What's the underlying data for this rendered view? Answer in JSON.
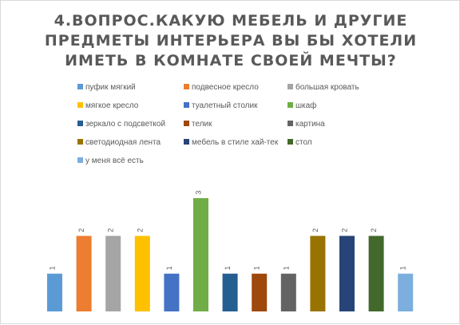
{
  "chart_data": {
    "type": "bar",
    "title_lines": [
      "4.ВОПРОС.КАКУЮ МЕБЕЛЬ И ДРУГИЕ",
      "ПРЕДМЕТЫ ИНТЕРЬЕРА ВЫ БЫ ХОТЕЛИ",
      "ИМЕТЬ В КОМНАТЕ СВОЕЙ МЕЧТЫ?"
    ],
    "xlabel": "",
    "ylabel": "",
    "ylim": [
      0,
      3
    ],
    "grid": false,
    "legend_position": "top",
    "series": [
      {
        "name": "пуфик мягкий",
        "value": 1,
        "color": "#5B9BD5"
      },
      {
        "name": "подвесное кресло",
        "value": 2,
        "color": "#ED7D31"
      },
      {
        "name": "большая кровать",
        "value": 2,
        "color": "#A5A5A5"
      },
      {
        "name": "мягкое кресло",
        "value": 2,
        "color": "#FFC000"
      },
      {
        "name": "туалетный столик",
        "value": 1,
        "color": "#4472C4"
      },
      {
        "name": "шкаф",
        "value": 3,
        "color": "#70AD47"
      },
      {
        "name": "зеркало с подсветкой",
        "value": 1,
        "color": "#255E91"
      },
      {
        "name": "телик",
        "value": 1,
        "color": "#9E480E"
      },
      {
        "name": "картина",
        "value": 1,
        "color": "#636363"
      },
      {
        "name": "светодиодная лента",
        "value": 2,
        "color": "#997300"
      },
      {
        "name": "мебель в стиле хай-тек",
        "value": 2,
        "color": "#264478"
      },
      {
        "name": "стол",
        "value": 2,
        "color": "#43682B"
      },
      {
        "name": "у меня всё есть",
        "value": 1,
        "color": "#7CAFDD"
      }
    ]
  }
}
